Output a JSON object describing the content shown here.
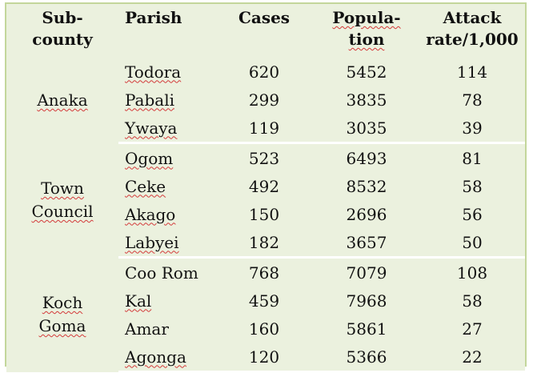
{
  "table": {
    "headers": {
      "subcounty": [
        "Sub-",
        "county"
      ],
      "parish": "Parish",
      "cases": "Cases",
      "population": [
        "Popula-",
        "tion"
      ],
      "attack_rate": [
        "Attack",
        "rate/1,000"
      ]
    },
    "groups": [
      {
        "subcounty": [
          "Anaka"
        ],
        "rows": [
          {
            "parish": "Todora",
            "cases": "620",
            "population": "5452",
            "attack_rate": "114"
          },
          {
            "parish": "Pabali",
            "cases": "299",
            "population": "3835",
            "attack_rate": "78"
          },
          {
            "parish": "Ywaya",
            "cases": "119",
            "population": "3035",
            "attack_rate": "39"
          }
        ]
      },
      {
        "subcounty": [
          "Town",
          "Council"
        ],
        "rows": [
          {
            "parish": "Ogom",
            "cases": "523",
            "population": "6493",
            "attack_rate": "81"
          },
          {
            "parish": "Ceke",
            "cases": "492",
            "population": "8532",
            "attack_rate": "58"
          },
          {
            "parish": "Akago",
            "cases": "150",
            "population": "2696",
            "attack_rate": "56"
          },
          {
            "parish": "Labyei",
            "cases": "182",
            "population": "3657",
            "attack_rate": "50"
          }
        ]
      },
      {
        "subcounty": [
          "Koch",
          "Goma"
        ],
        "rows": [
          {
            "parish": "Coo Rom",
            "cases": "768",
            "population": "7079",
            "attack_rate": "108"
          },
          {
            "parish": "Kal",
            "cases": "459",
            "population": "7968",
            "attack_rate": "58"
          },
          {
            "parish": "Amar",
            "cases": "160",
            "population": "5861",
            "attack_rate": "27"
          },
          {
            "parish": "Agonga",
            "cases": "120",
            "population": "5366",
            "attack_rate": "22"
          }
        ]
      }
    ]
  }
}
